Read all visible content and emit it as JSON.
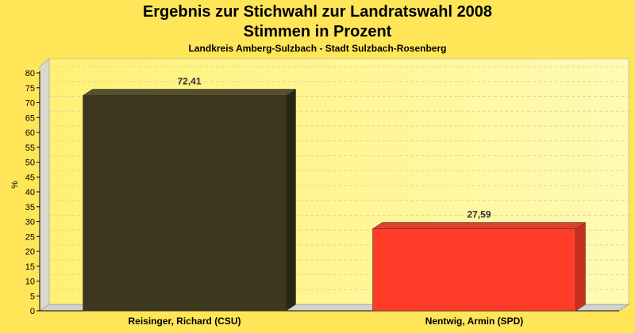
{
  "chart_data": {
    "type": "bar",
    "title": "Ergebnis zur Stichwahl zur Landratswahl 2008",
    "title_line2": "Stimmen in Prozent",
    "subtitle": "Landkreis Amberg-Sulzbach - Stadt Sulzbach-Rosenberg",
    "ylabel": "%",
    "xlabel": "",
    "ylim": [
      0,
      80
    ],
    "yticks": [
      0,
      5,
      10,
      15,
      20,
      25,
      30,
      35,
      40,
      45,
      50,
      55,
      60,
      65,
      70,
      75,
      80
    ],
    "grid": true,
    "categories": [
      "Reisinger, Richard (CSU)",
      "Nentwig, Armin (SPD)"
    ],
    "values": [
      72.41,
      27.59
    ],
    "value_labels": [
      "72,41",
      "27,59"
    ],
    "colors": [
      "#3c371e",
      "#ff3c28"
    ],
    "side_colors": [
      "#2a2614",
      "#c8301e"
    ],
    "top_colors": [
      "#57502c",
      "#e0402c"
    ]
  }
}
